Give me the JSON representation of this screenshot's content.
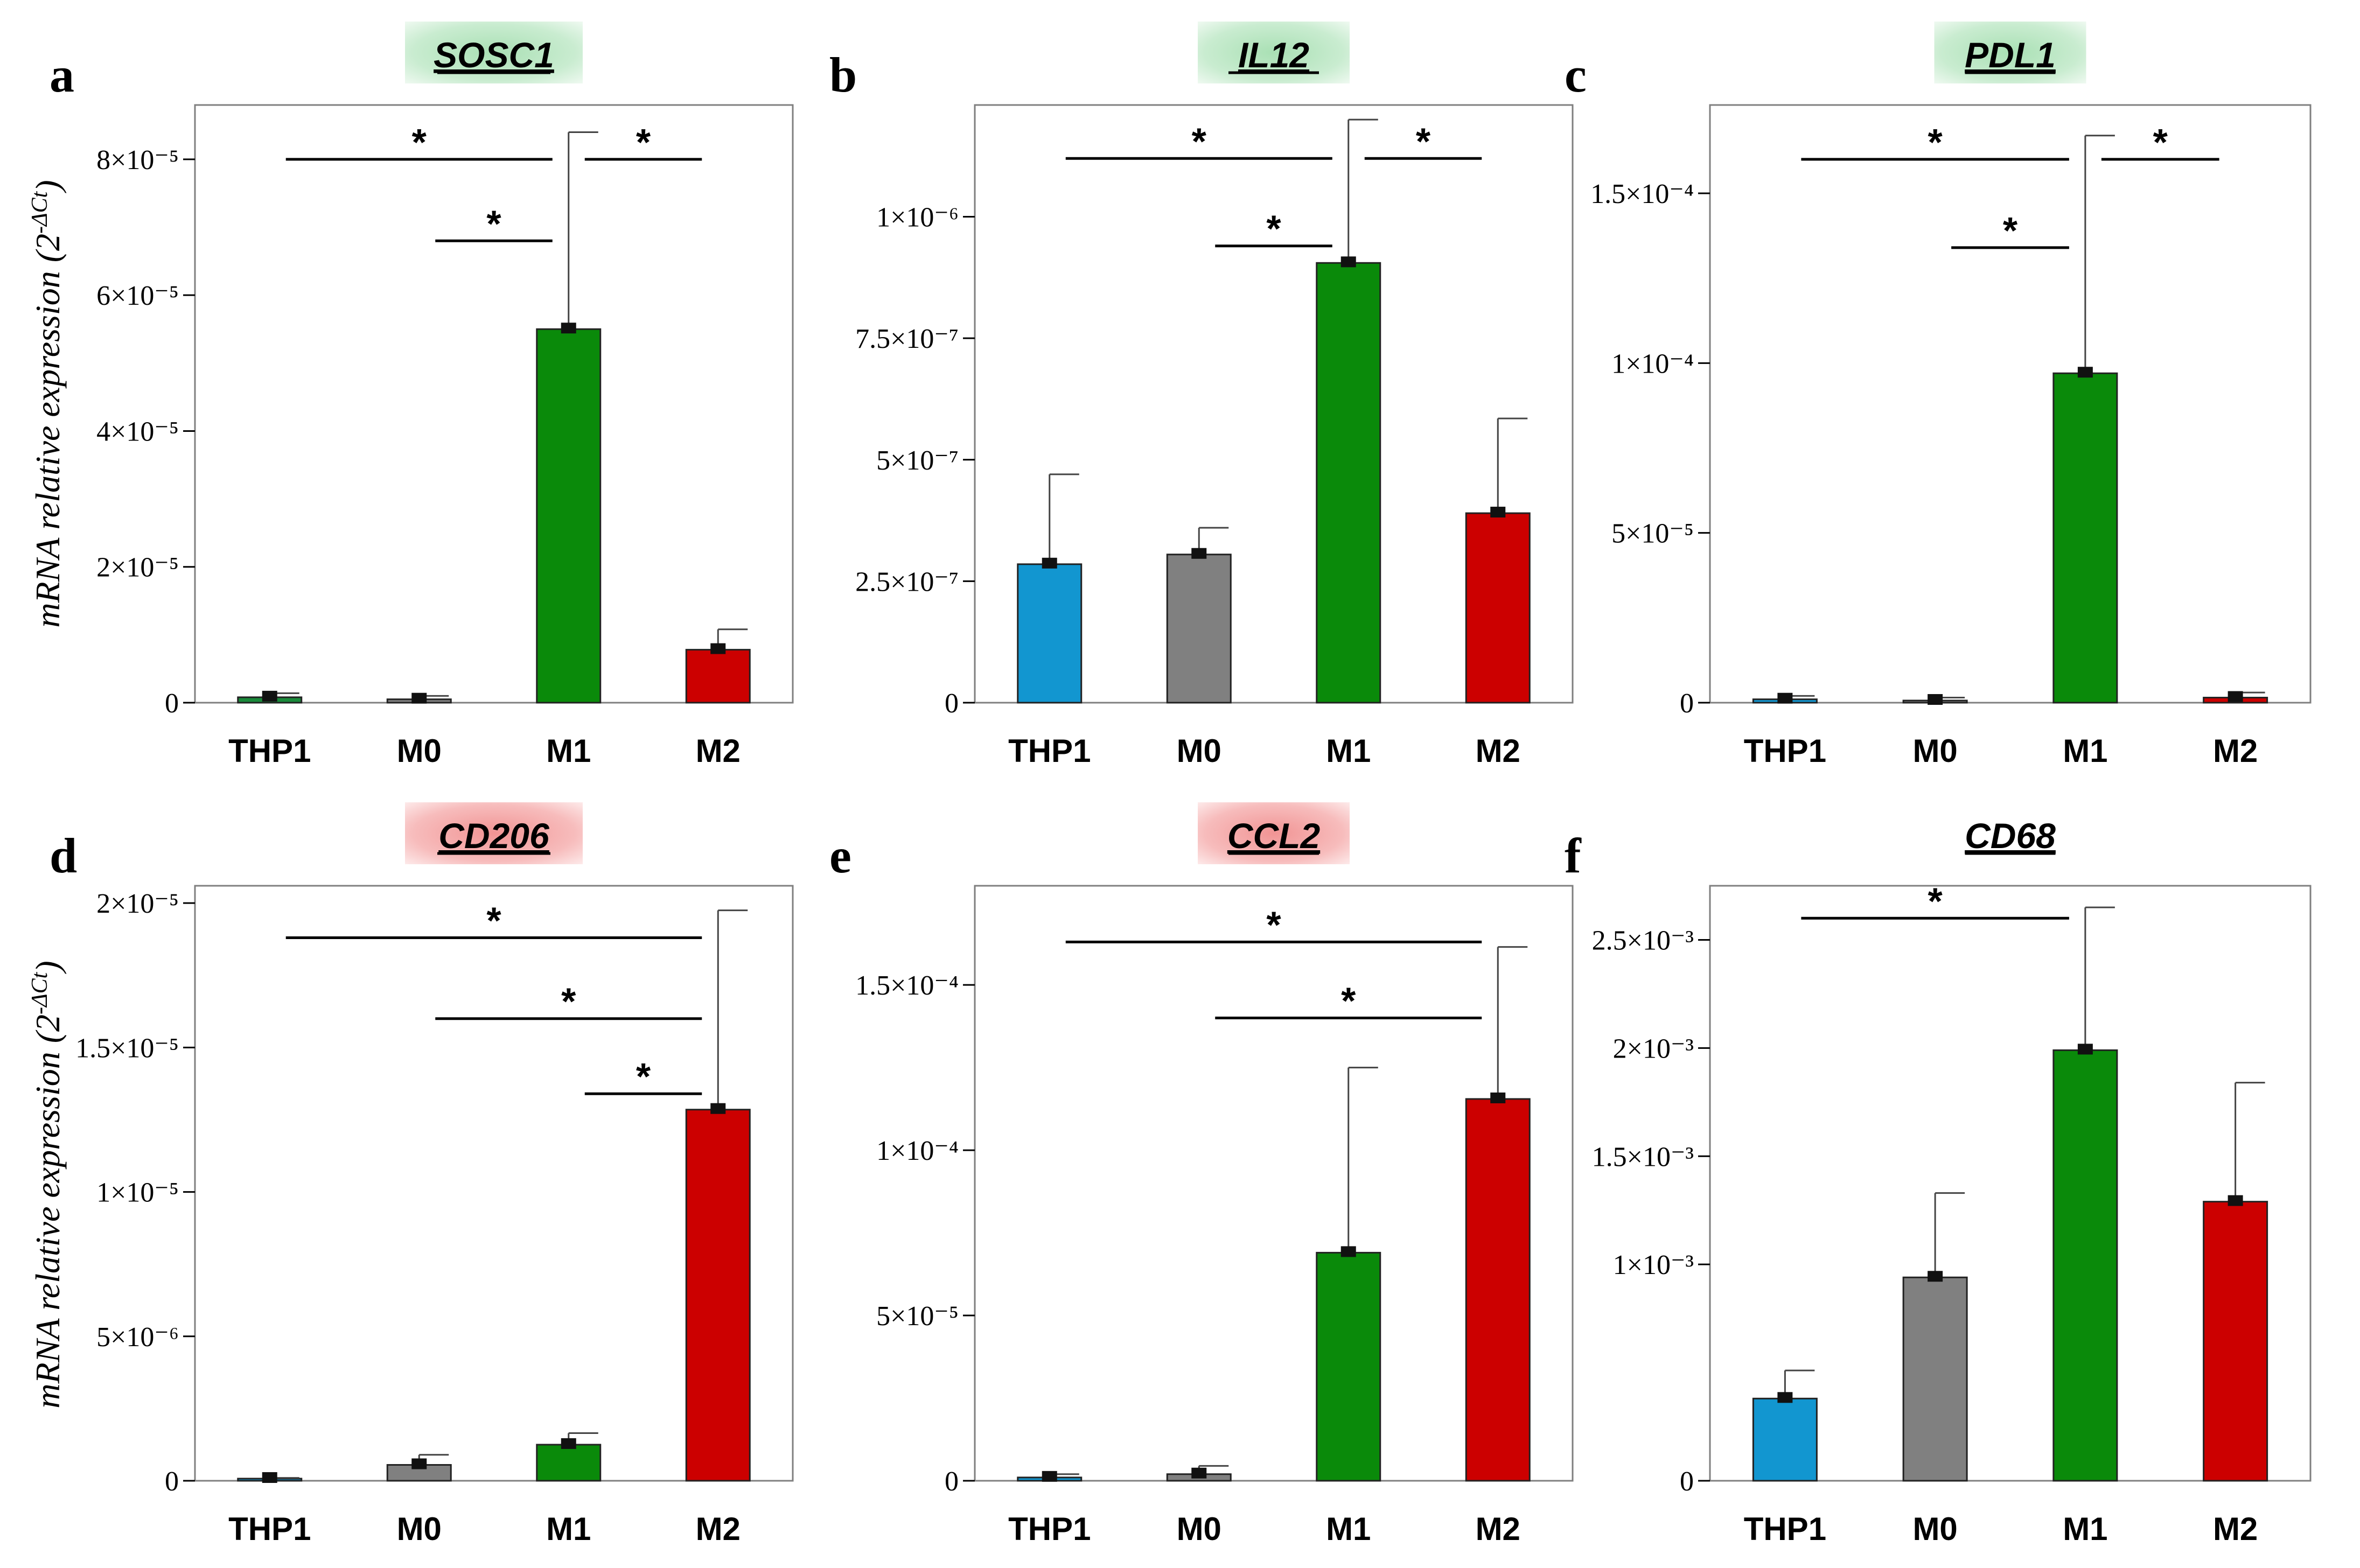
{
  "figure": {
    "y_axis_label": "mRNA relative expression (2",
    "y_axis_label_sup": "-ΔCt",
    "y_axis_label_close": ")"
  },
  "chart_data": [
    {
      "panel_letter": "a",
      "title": "SOSC1",
      "title_bg": "green",
      "type": "bar",
      "categories": [
        "THP1",
        "M0",
        "M1",
        "M2"
      ],
      "values": [
        8e-07,
        5e-07,
        5.5e-05,
        7.8e-06
      ],
      "errors": [
        6e-07,
        5e-07,
        2.9e-05,
        3e-06
      ],
      "colors": [
        "#1a8a3a",
        "#808080",
        "#0a8a0a",
        "#cc0000"
      ],
      "ylim": [
        0,
        8.8e-05
      ],
      "yticks": [
        0,
        2e-05,
        4e-05,
        6e-05,
        8e-05
      ],
      "yticklabels": [
        "0",
        "2×10⁻⁵",
        "4×10⁻⁵",
        "6×10⁻⁵",
        "8×10⁻⁵"
      ],
      "significance": [
        {
          "from": 0,
          "to": 2,
          "y": 8e-05,
          "label": "*"
        },
        {
          "from": 1,
          "to": 2,
          "y": 6.8e-05,
          "label": "*"
        },
        {
          "from": 2,
          "to": 3,
          "y": 8e-05,
          "label": "*"
        }
      ]
    },
    {
      "panel_letter": "b",
      "title": "IL12",
      "title_bg": "green",
      "type": "bar",
      "categories": [
        "THP1",
        "M0",
        "M1",
        "M2"
      ],
      "values": [
        2.85e-07,
        3.05e-07,
        9.05e-07,
        3.9e-07
      ],
      "errors": [
        1.85e-07,
        5.5e-08,
        2.95e-07,
        1.95e-07
      ],
      "colors": [
        "#1296d0",
        "#808080",
        "#0a8a0a",
        "#cc0000"
      ],
      "ylim": [
        0,
        1.23e-06
      ],
      "yticks": [
        0,
        2.5e-07,
        5e-07,
        7.5e-07,
        1e-06
      ],
      "yticklabels": [
        "0",
        "2.5×10⁻⁷",
        "5×10⁻⁷",
        "7.5×10⁻⁷",
        "1×10⁻⁶"
      ],
      "significance": [
        {
          "from": 0,
          "to": 2,
          "y": 1.12e-06,
          "label": "*"
        },
        {
          "from": 1,
          "to": 2,
          "y": 9.4e-07,
          "label": "*"
        },
        {
          "from": 2,
          "to": 3,
          "y": 1.12e-06,
          "label": "*"
        }
      ]
    },
    {
      "panel_letter": "c",
      "title": "PDL1",
      "title_bg": "green",
      "type": "bar",
      "categories": [
        "THP1",
        "M0",
        "M1",
        "M2"
      ],
      "values": [
        1e-06,
        5e-07,
        9.7e-05,
        1.5e-06
      ],
      "errors": [
        1e-06,
        1e-06,
        7e-05,
        1.5e-06
      ],
      "colors": [
        "#1296d0",
        "#808080",
        "#0a8a0a",
        "#cc0000"
      ],
      "ylim": [
        0,
        0.000176
      ],
      "yticks": [
        0,
        5e-05,
        0.0001,
        0.00015
      ],
      "yticklabels": [
        "0",
        "5×10⁻⁵",
        "1×10⁻⁴",
        "1.5×10⁻⁴"
      ],
      "significance": [
        {
          "from": 0,
          "to": 2,
          "y": 0.00016,
          "label": "*"
        },
        {
          "from": 1,
          "to": 2,
          "y": 0.000134,
          "label": "*"
        },
        {
          "from": 2,
          "to": 3,
          "y": 0.00016,
          "label": "*"
        }
      ]
    },
    {
      "panel_letter": "d",
      "title": "CD206",
      "title_bg": "red",
      "type": "bar",
      "categories": [
        "THP1",
        "M0",
        "M1",
        "M2"
      ],
      "values": [
        5e-08,
        5.5e-07,
        1.25e-06,
        1.285e-05
      ],
      "errors": [
        5e-08,
        3.5e-07,
        4e-07,
        6.9e-06
      ],
      "colors": [
        "#1296d0",
        "#808080",
        "#0a8a0a",
        "#cc0000"
      ],
      "ylim": [
        0,
        2.06e-05
      ],
      "yticks": [
        0,
        5e-06,
        1e-05,
        1.5e-05,
        2e-05
      ],
      "yticklabels": [
        "0",
        "5×10⁻⁶",
        "1×10⁻⁵",
        "1.5×10⁻⁵",
        "2×10⁻⁵"
      ],
      "significance": [
        {
          "from": 0,
          "to": 3,
          "y": 1.88e-05,
          "label": "*"
        },
        {
          "from": 1,
          "to": 3,
          "y": 1.6e-05,
          "label": "*"
        },
        {
          "from": 2,
          "to": 3,
          "y": 1.34e-05,
          "label": "*"
        }
      ]
    },
    {
      "panel_letter": "e",
      "title": "CCL2",
      "title_bg": "red",
      "type": "bar",
      "categories": [
        "THP1",
        "M0",
        "M1",
        "M2"
      ],
      "values": [
        1e-06,
        2e-06,
        6.9e-05,
        0.0001155
      ],
      "errors": [
        1e-06,
        2.5e-06,
        5.6e-05,
        4.6e-05
      ],
      "colors": [
        "#1296d0",
        "#808080",
        "#0a8a0a",
        "#cc0000"
      ],
      "ylim": [
        0,
        0.00018
      ],
      "yticks": [
        0,
        5e-05,
        0.0001,
        0.00015
      ],
      "yticklabels": [
        "0",
        "5×10⁻⁵",
        "1×10⁻⁴",
        "1.5×10⁻⁴"
      ],
      "significance": [
        {
          "from": 0,
          "to": 3,
          "y": 0.000163,
          "label": "*"
        },
        {
          "from": 1,
          "to": 3,
          "y": 0.00014,
          "label": "*"
        }
      ]
    },
    {
      "panel_letter": "f",
      "title": "CD68",
      "title_bg": "none",
      "type": "bar",
      "categories": [
        "THP1",
        "M0",
        "M1",
        "M2"
      ],
      "values": [
        0.00038,
        0.00094,
        0.00199,
        0.00129
      ],
      "errors": [
        0.00013,
        0.00039,
        0.00066,
        0.00055
      ],
      "colors": [
        "#1296d0",
        "#808080",
        "#0a8a0a",
        "#cc0000"
      ],
      "ylim": [
        0,
        0.00275
      ],
      "yticks": [
        0,
        0.001,
        0.0015,
        0.002,
        0.0025
      ],
      "yticklabels": [
        "0",
        "1×10⁻³",
        "1.5×10⁻³",
        "2×10⁻³",
        "2.5×10⁻³"
      ],
      "significance": [
        {
          "from": 0,
          "to": 2,
          "y": 0.0026,
          "label": "*"
        }
      ]
    }
  ]
}
